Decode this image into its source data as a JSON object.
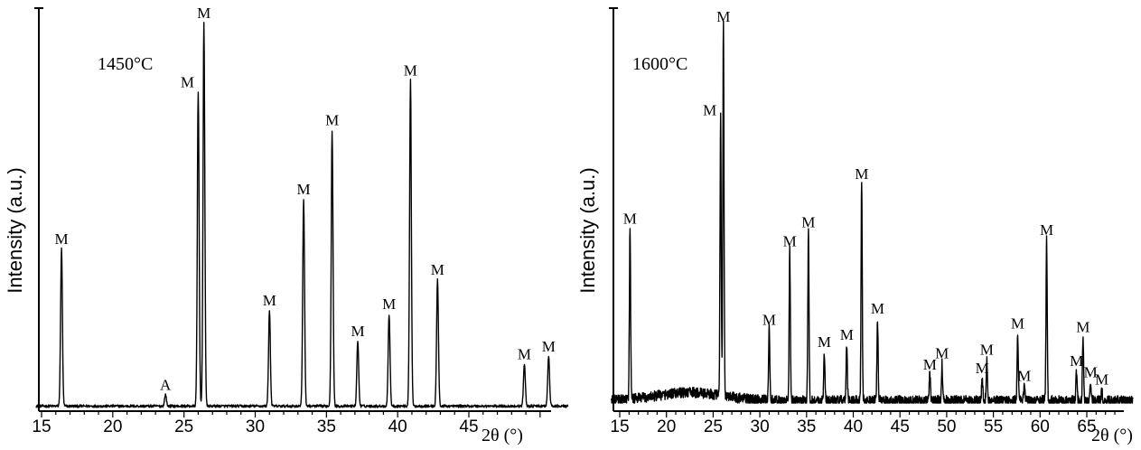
{
  "chart_data": [
    {
      "type": "line",
      "annotation": "1450°C",
      "xlabel": "2θ (°)",
      "ylabel": "Intensity (a.u.)",
      "xlim": [
        14.5,
        52
      ],
      "ylim": [
        0,
        100
      ],
      "x_ticks": [
        15,
        20,
        25,
        30,
        35,
        40,
        45
      ],
      "grid": false,
      "noise": "low",
      "peaks": [
        {
          "x": 16.4,
          "y": 41,
          "label": "M"
        },
        {
          "x": 23.7,
          "y": 3,
          "label": "A"
        },
        {
          "x": 26.0,
          "y": 82,
          "label": "M",
          "label_side": "left"
        },
        {
          "x": 26.4,
          "y": 100,
          "label": "M"
        },
        {
          "x": 31.0,
          "y": 25,
          "label": "M"
        },
        {
          "x": 33.4,
          "y": 54,
          "label": "M"
        },
        {
          "x": 35.4,
          "y": 72,
          "label": "M"
        },
        {
          "x": 37.2,
          "y": 17,
          "label": "M"
        },
        {
          "x": 39.4,
          "y": 24,
          "label": "M"
        },
        {
          "x": 40.9,
          "y": 85,
          "label": "M"
        },
        {
          "x": 42.8,
          "y": 33,
          "label": "M"
        },
        {
          "x": 48.9,
          "y": 11,
          "label": "M"
        },
        {
          "x": 50.6,
          "y": 13,
          "label": "M"
        }
      ]
    },
    {
      "type": "line",
      "annotation": "1600°C",
      "xlabel": "2θ (°)",
      "ylabel": "Intensity (a.u.)",
      "xlim": [
        14,
        70
      ],
      "ylim": [
        0,
        100
      ],
      "x_ticks": [
        15,
        20,
        25,
        30,
        35,
        40,
        45,
        50,
        55,
        60,
        65
      ],
      "grid": false,
      "noise": "high",
      "peaks": [
        {
          "x": 16.1,
          "y": 46,
          "label": "M"
        },
        {
          "x": 25.8,
          "y": 75,
          "label": "M",
          "label_side": "left"
        },
        {
          "x": 26.1,
          "y": 100,
          "label": "M"
        },
        {
          "x": 31.0,
          "y": 19,
          "label": "M"
        },
        {
          "x": 33.2,
          "y": 40,
          "label": "M"
        },
        {
          "x": 35.2,
          "y": 45,
          "label": "M"
        },
        {
          "x": 36.9,
          "y": 13,
          "label": "M"
        },
        {
          "x": 39.3,
          "y": 15,
          "label": "M"
        },
        {
          "x": 40.9,
          "y": 58,
          "label": "M"
        },
        {
          "x": 42.6,
          "y": 22,
          "label": "M"
        },
        {
          "x": 48.2,
          "y": 7,
          "label": "M"
        },
        {
          "x": 49.5,
          "y": 10,
          "label": "M"
        },
        {
          "x": 53.8,
          "y": 6,
          "label": "M"
        },
        {
          "x": 54.3,
          "y": 11,
          "label": "M"
        },
        {
          "x": 57.6,
          "y": 18,
          "label": "M"
        },
        {
          "x": 58.3,
          "y": 4,
          "label": "M"
        },
        {
          "x": 60.7,
          "y": 43,
          "label": "M"
        },
        {
          "x": 63.9,
          "y": 8,
          "label": "M"
        },
        {
          "x": 64.6,
          "y": 17,
          "label": "M"
        },
        {
          "x": 65.4,
          "y": 5,
          "label": "M"
        },
        {
          "x": 66.6,
          "y": 3,
          "label": "M"
        }
      ]
    }
  ]
}
